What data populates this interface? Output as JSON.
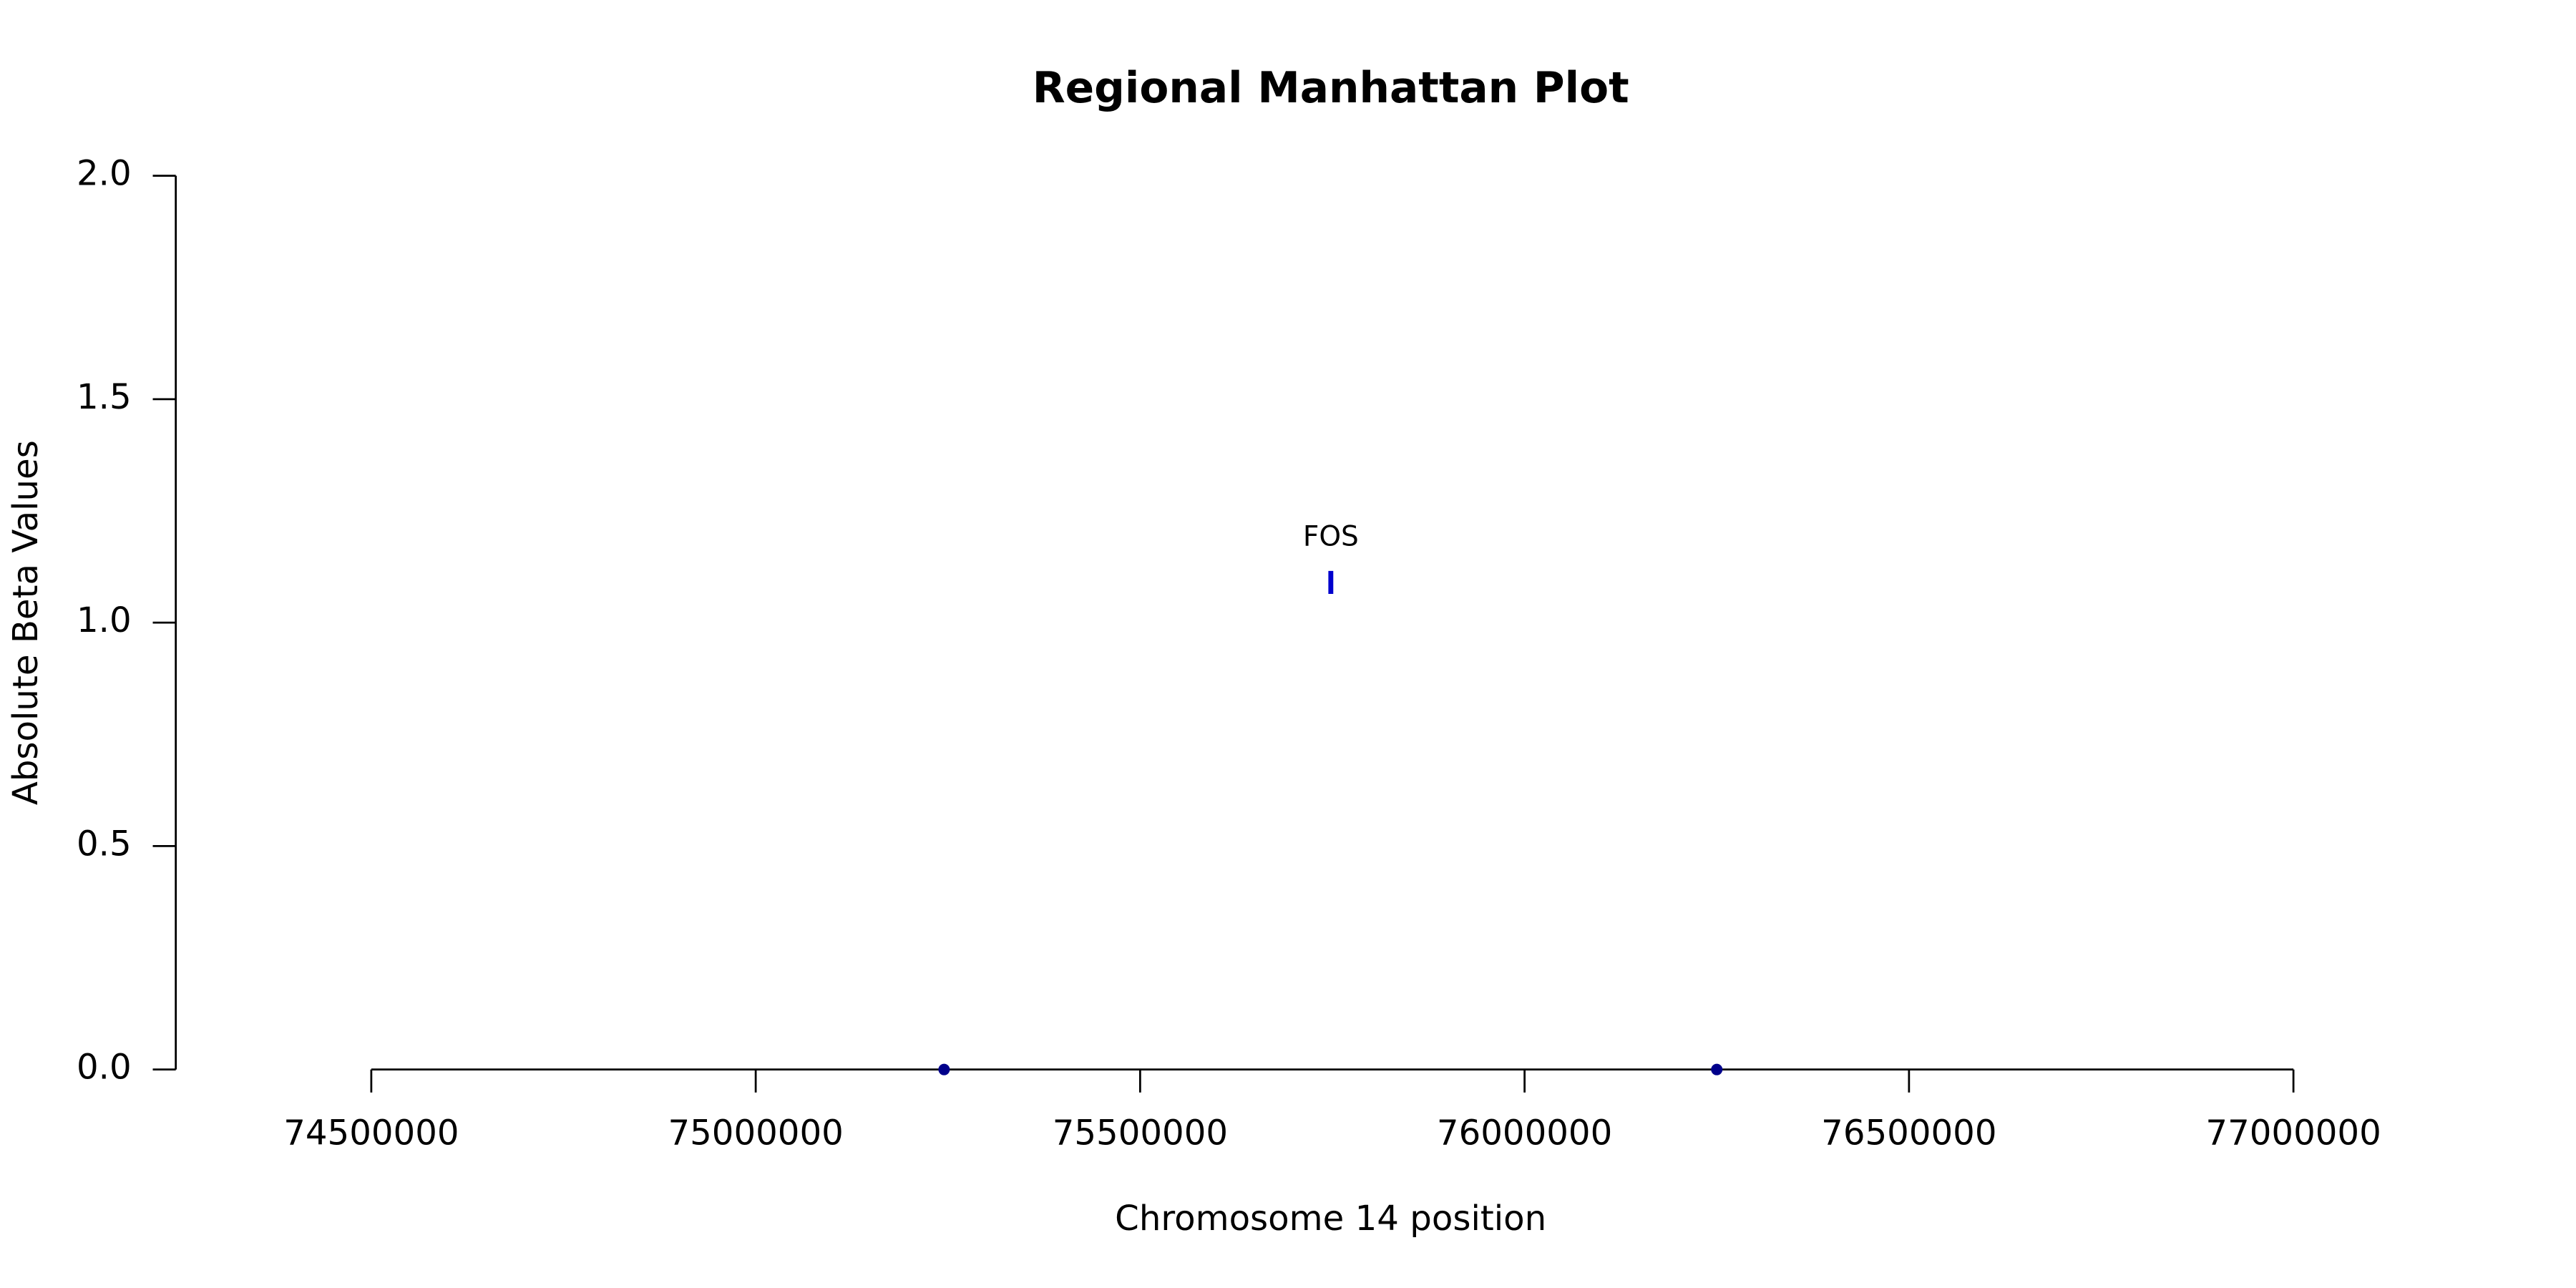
{
  "chart_data": {
    "type": "scatter",
    "title": "Regional Manhattan Plot",
    "x_label": "Chromosome 14 position",
    "y_label": "Absolute Beta Values",
    "x": [
      75245000,
      75748000,
      76250000
    ],
    "values": [
      0,
      1.09,
      0
    ],
    "point_labels": [
      null,
      "FOS",
      null
    ],
    "colors": [
      "#00008b",
      "#0000cd",
      "#00008b"
    ],
    "markers": [
      "dot",
      "bar",
      "dot"
    ],
    "xlim": [
      74500000,
      77000000
    ],
    "xticks": [
      74500000,
      75000000,
      75500000,
      76000000,
      76500000,
      77000000
    ],
    "ylim": [
      0,
      2
    ],
    "yticks": [
      {
        "value": 0,
        "label": "0.0"
      },
      {
        "value": 0.5,
        "label": "0.5"
      },
      {
        "value": 1,
        "label": "1.0"
      },
      {
        "value": 1.5,
        "label": "1.5"
      },
      {
        "value": 2,
        "label": "2.0"
      }
    ],
    "grid": false
  }
}
